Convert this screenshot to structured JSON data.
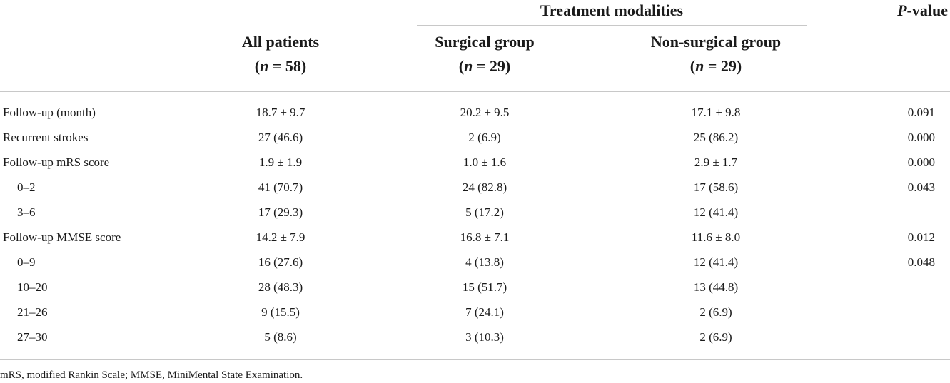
{
  "table": {
    "group_header": "Treatment modalities",
    "pvalue_header": {
      "prefix": "P",
      "suffix": "-value"
    },
    "columns": [
      {
        "label": "All patients",
        "n_var": "n",
        "n_rest": " = 58"
      },
      {
        "label": "Surgical group",
        "n_var": "n",
        "n_rest": " = 29"
      },
      {
        "label": "Non-surgical group",
        "n_var": "n",
        "n_rest": " = 29"
      }
    ],
    "rows": [
      {
        "label": "Follow-up (month)",
        "all": "18.7 ± 9.7",
        "surgical": "20.2 ± 9.5",
        "nonsurgical": "17.1 ± 9.8",
        "p": "0.091"
      },
      {
        "label": "Recurrent strokes",
        "all": "27 (46.6)",
        "surgical": "2 (6.9)",
        "nonsurgical": "25 (86.2)",
        "p": "0.000"
      },
      {
        "label": "Follow-up mRS score",
        "all": "1.9 ± 1.9",
        "surgical": "1.0 ± 1.6",
        "nonsurgical": "2.9 ± 1.7",
        "p": "0.000"
      },
      {
        "label": "0–2",
        "all": "41 (70.7)",
        "surgical": "24 (82.8)",
        "nonsurgical": "17 (58.6)",
        "p": "0.043"
      },
      {
        "label": "3–6",
        "all": "17 (29.3)",
        "surgical": "5 (17.2)",
        "nonsurgical": "12 (41.4)",
        "p": ""
      },
      {
        "label": "Follow-up MMSE score",
        "all": "14.2 ± 7.9",
        "surgical": "16.8 ± 7.1",
        "nonsurgical": "11.6 ± 8.0",
        "p": "0.012"
      },
      {
        "label": "0–9",
        "all": "16 (27.6)",
        "surgical": "4 (13.8)",
        "nonsurgical": "12 (41.4)",
        "p": "0.048"
      },
      {
        "label": "10–20",
        "all": "28 (48.3)",
        "surgical": "15 (51.7)",
        "nonsurgical": "13 (44.8)",
        "p": ""
      },
      {
        "label": "21–26",
        "all": "9 (15.5)",
        "surgical": "7 (24.1)",
        "nonsurgical": "2 (6.9)",
        "p": ""
      },
      {
        "label": "27–30",
        "all": "5 (8.6)",
        "surgical": "3 (10.3)",
        "nonsurgical": "2 (6.9)",
        "p": ""
      }
    ]
  },
  "footnote": "mRS, modified Rankin Scale; MMSE, MiniMental State Examination."
}
